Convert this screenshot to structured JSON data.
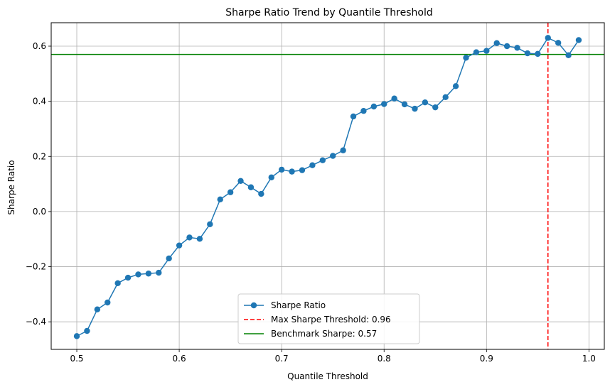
{
  "chart_data": {
    "type": "line",
    "title": "Sharpe Ratio Trend by Quantile Threshold",
    "xlabel": "Quantile Threshold",
    "ylabel": "Sharpe Ratio",
    "xlim": [
      0.475,
      1.015
    ],
    "ylim": [
      -0.5,
      0.685
    ],
    "grid": true,
    "legend_position": "lower-center",
    "x_ticks": [
      0.5,
      0.6,
      0.7,
      0.8,
      0.9,
      1.0
    ],
    "x_tick_labels": [
      "0.5",
      "0.6",
      "0.7",
      "0.8",
      "0.9",
      "1.0"
    ],
    "y_ticks": [
      -0.4,
      -0.2,
      0.0,
      0.2,
      0.4,
      0.6
    ],
    "y_tick_labels": [
      "−0.4",
      "−0.2",
      "0.0",
      "0.2",
      "0.4",
      "0.6"
    ],
    "series": [
      {
        "name": "Sharpe Ratio",
        "color": "#1f77b4",
        "marker": "circle",
        "x": [
          0.5,
          0.51,
          0.52,
          0.53,
          0.54,
          0.55,
          0.56,
          0.57,
          0.58,
          0.59,
          0.6,
          0.61,
          0.62,
          0.63,
          0.64,
          0.65,
          0.66,
          0.67,
          0.68,
          0.69,
          0.7,
          0.71,
          0.72,
          0.73,
          0.74,
          0.75,
          0.76,
          0.77,
          0.78,
          0.79,
          0.8,
          0.81,
          0.82,
          0.83,
          0.84,
          0.85,
          0.86,
          0.87,
          0.88,
          0.89,
          0.9,
          0.91,
          0.92,
          0.93,
          0.94,
          0.95,
          0.96,
          0.97,
          0.98,
          0.99
        ],
        "y": [
          -0.452,
          -0.433,
          -0.355,
          -0.33,
          -0.26,
          -0.24,
          -0.228,
          -0.225,
          -0.222,
          -0.17,
          -0.123,
          -0.094,
          -0.099,
          -0.046,
          0.044,
          0.07,
          0.111,
          0.088,
          0.064,
          0.124,
          0.152,
          0.145,
          0.15,
          0.168,
          0.186,
          0.202,
          0.222,
          0.345,
          0.365,
          0.381,
          0.39,
          0.41,
          0.389,
          0.373,
          0.396,
          0.378,
          0.415,
          0.455,
          0.558,
          0.578,
          0.583,
          0.611,
          0.6,
          0.594,
          0.574,
          0.572,
          0.63,
          0.612,
          0.567,
          0.622
        ]
      }
    ],
    "reference_lines": [
      {
        "name": "Max Sharpe Threshold: 0.96",
        "orientation": "vertical",
        "value": 0.96,
        "color": "#ff0000",
        "style": "dashed"
      },
      {
        "name": "Benchmark Sharpe: 0.57",
        "orientation": "horizontal",
        "value": 0.57,
        "color": "#008000",
        "style": "solid"
      }
    ]
  }
}
